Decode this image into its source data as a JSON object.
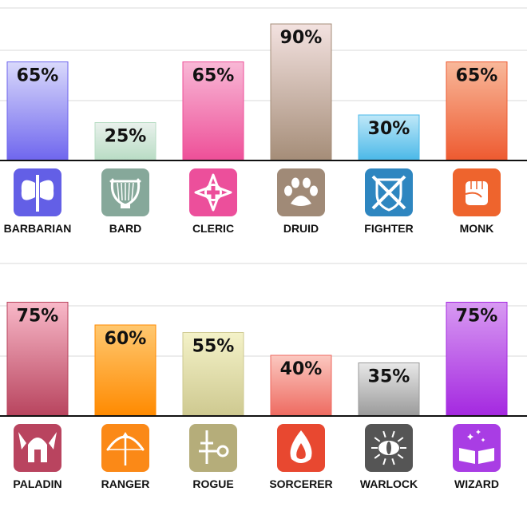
{
  "chart_data": [
    {
      "type": "bar",
      "categories": [
        "BARBARIAN",
        "BARD",
        "CLERIC",
        "DRUID",
        "FIGHTER",
        "MONK"
      ],
      "values": [
        65,
        25,
        65,
        90,
        30,
        65
      ],
      "value_labels": [
        "65%",
        "25%",
        "65%",
        "90%",
        "30%",
        "65%"
      ],
      "ylim": [
        0,
        100
      ],
      "grid": true,
      "icons": [
        "double-axe-icon",
        "lyre-icon",
        "holy-cross-icon",
        "paw-icon",
        "crossed-swords-shield-icon",
        "fist-icon"
      ],
      "colors": [
        [
          "#d9d9fb",
          "#6f66ee"
        ],
        [
          "#e9f1ec",
          "#b8dcc4"
        ],
        [
          "#f8b8d6",
          "#ee4f98"
        ],
        [
          "#f3e2e0",
          "#a58d78"
        ],
        [
          "#bfe8f8",
          "#4ab8e8"
        ],
        [
          "#f8b89a",
          "#ee5a30"
        ]
      ],
      "icon_colors": [
        "#635fe6",
        "#86a89a",
        "#ec4f9b",
        "#a08a77",
        "#2e86c0",
        "#ee642d"
      ]
    },
    {
      "type": "bar",
      "categories": [
        "PALADIN",
        "RANGER",
        "ROGUE",
        "SORCERER",
        "WARLOCK",
        "WIZARD"
      ],
      "values": [
        75,
        60,
        55,
        40,
        35,
        75
      ],
      "value_labels": [
        "75%",
        "60%",
        "55%",
        "40%",
        "35%",
        "75%"
      ],
      "ylim": [
        0,
        100
      ],
      "grid": true,
      "icons": [
        "winged-helmet-icon",
        "bow-arrow-icon",
        "dagger-key-icon",
        "flame-icon",
        "evil-eye-icon",
        "spellbook-icon"
      ],
      "colors": [
        [
          "#f8b8c8",
          "#b8445e"
        ],
        [
          "#ffc870",
          "#ff8a00"
        ],
        [
          "#f4f2c8",
          "#cec990"
        ],
        [
          "#fbc8c0",
          "#ee6a60"
        ],
        [
          "#e8e8e8",
          "#9a9a9a"
        ],
        [
          "#d89af2",
          "#a428e0"
        ]
      ],
      "icon_colors": [
        "#b9445f",
        "#fb8917",
        "#b5ad7a",
        "#e84830",
        "#555555",
        "#a93de4"
      ]
    }
  ]
}
